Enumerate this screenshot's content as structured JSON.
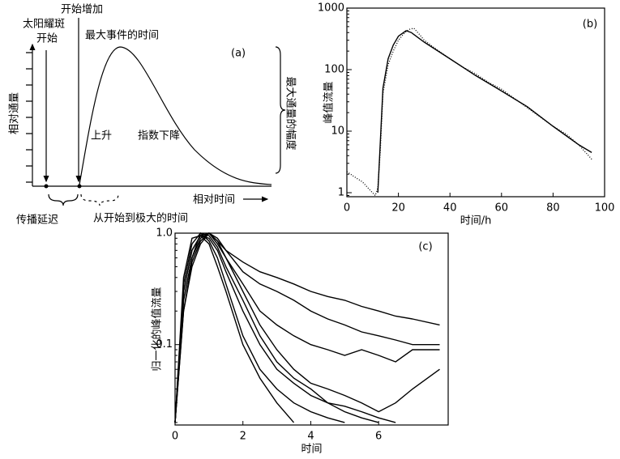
{
  "chart_data": [
    {
      "type": "schematic",
      "label": "(a)",
      "ylabel": "相对通量",
      "xlabel": "相对时间",
      "annotations": {
        "flare_start_1": "太阳耀斑",
        "flare_start_2": "开始",
        "onset": "开始增加",
        "peak_time": "最大事件的时间",
        "amplitude": "最大通量的幅度",
        "rise": "上升",
        "decay": "指数下降",
        "delay": "传播延迟",
        "rise_time": "从开始到极大的时间"
      }
    },
    {
      "type": "line",
      "label": "(b)",
      "xlabel": "时间/h",
      "ylabel": "峰值流量",
      "log_y": true,
      "xlim": [
        0,
        100
      ],
      "xticks": [
        0,
        20,
        40,
        60,
        80,
        100
      ],
      "ylim": [
        0.86,
        1000
      ],
      "yticks": [
        1,
        10,
        100,
        1000
      ],
      "series": [
        {
          "color": "#000000",
          "dotted": false,
          "x": [
            12,
            14,
            16,
            18,
            20,
            23,
            25,
            30,
            40,
            50,
            60,
            70,
            80,
            90,
            95
          ],
          "values": [
            1,
            50,
            150,
            250,
            350,
            430,
            400,
            280,
            150,
            80,
            45,
            25,
            12,
            6,
            4.5
          ]
        },
        {
          "color": "#000000",
          "dotted": true,
          "x": [
            0,
            3,
            6,
            9,
            11,
            12,
            13,
            14,
            16,
            18,
            20,
            22,
            24,
            26,
            28,
            30,
            35,
            40,
            45,
            50,
            55,
            60,
            65,
            70,
            75,
            80,
            85,
            90,
            95
          ],
          "values": [
            2.2,
            1.8,
            1.5,
            1.1,
            0.9,
            1.2,
            5,
            40,
            120,
            200,
            300,
            380,
            450,
            470,
            380,
            300,
            210,
            150,
            110,
            85,
            62,
            48,
            34,
            24,
            17,
            12,
            9,
            6,
            3.5
          ]
        }
      ]
    },
    {
      "type": "line",
      "label": "(c)",
      "xlabel": "时间",
      "ylabel": "归一化的峰值流量",
      "log_y": true,
      "xlim": [
        0,
        8.05
      ],
      "xticks": [
        0,
        2,
        4,
        6
      ],
      "ylim": [
        0.019,
        1
      ],
      "yticks": [
        {
          "value": 1,
          "label": "1.0"
        },
        0.1
      ],
      "x": [
        0,
        0.25,
        0.5,
        0.75,
        1,
        1.25,
        1.5,
        2,
        2.5,
        3,
        3.5,
        4,
        4.5,
        5,
        5.5,
        6,
        6.5,
        7,
        7.8
      ],
      "series": [
        {
          "color": "#000000",
          "values": [
            0.02,
            0.3,
            0.7,
            0.95,
            1,
            0.85,
            0.7,
            0.55,
            0.45,
            0.4,
            0.35,
            0.3,
            0.27,
            0.25,
            0.22,
            0.2,
            0.18,
            0.17,
            0.15
          ]
        },
        {
          "color": "#000000",
          "values": [
            0.02,
            0.25,
            0.6,
            0.9,
            1,
            0.9,
            0.7,
            0.45,
            0.35,
            0.3,
            0.25,
            0.2,
            0.17,
            0.15,
            0.13,
            0.12,
            0.11,
            0.1,
            0.1
          ]
        },
        {
          "color": "#000000",
          "values": [
            0.02,
            0.2,
            0.55,
            0.85,
            1,
            0.8,
            0.6,
            0.35,
            0.2,
            0.15,
            0.12,
            0.1,
            0.09,
            0.08,
            0.09,
            0.08,
            0.07,
            0.09,
            0.09
          ]
        },
        {
          "color": "#000000",
          "values": [
            0.02,
            0.3,
            0.7,
            0.95,
            0.9,
            0.7,
            0.45,
            0.2,
            0.1,
            0.06,
            0.045,
            0.035,
            0.03,
            0.028,
            0.025,
            0.022,
            0.02,
            null,
            null
          ]
        },
        {
          "color": "#000000",
          "values": [
            0.02,
            0.35,
            0.8,
            1,
            0.85,
            0.6,
            0.35,
            0.12,
            0.06,
            0.04,
            0.03,
            0.025,
            0.022,
            0.02,
            null,
            null,
            null,
            null,
            null
          ]
        },
        {
          "color": "#000000",
          "values": [
            0.02,
            0.2,
            0.5,
            0.8,
            1,
            0.85,
            0.6,
            0.3,
            0.15,
            0.09,
            0.06,
            0.045,
            0.04,
            0.035,
            0.03,
            0.025,
            0.03,
            0.04,
            0.06
          ]
        },
        {
          "color": "#000000",
          "values": [
            0.02,
            0.4,
            0.9,
            0.95,
            0.8,
            0.5,
            0.3,
            0.1,
            0.05,
            0.03,
            0.02,
            null,
            null,
            null,
            null,
            null,
            null,
            null,
            null
          ]
        },
        {
          "color": "#000000",
          "values": [
            0.02,
            0.25,
            0.6,
            1,
            0.95,
            0.75,
            0.5,
            0.25,
            0.12,
            0.07,
            0.05,
            0.04,
            0.03,
            0.025,
            0.022,
            0.02,
            null,
            null,
            null
          ]
        }
      ]
    }
  ]
}
